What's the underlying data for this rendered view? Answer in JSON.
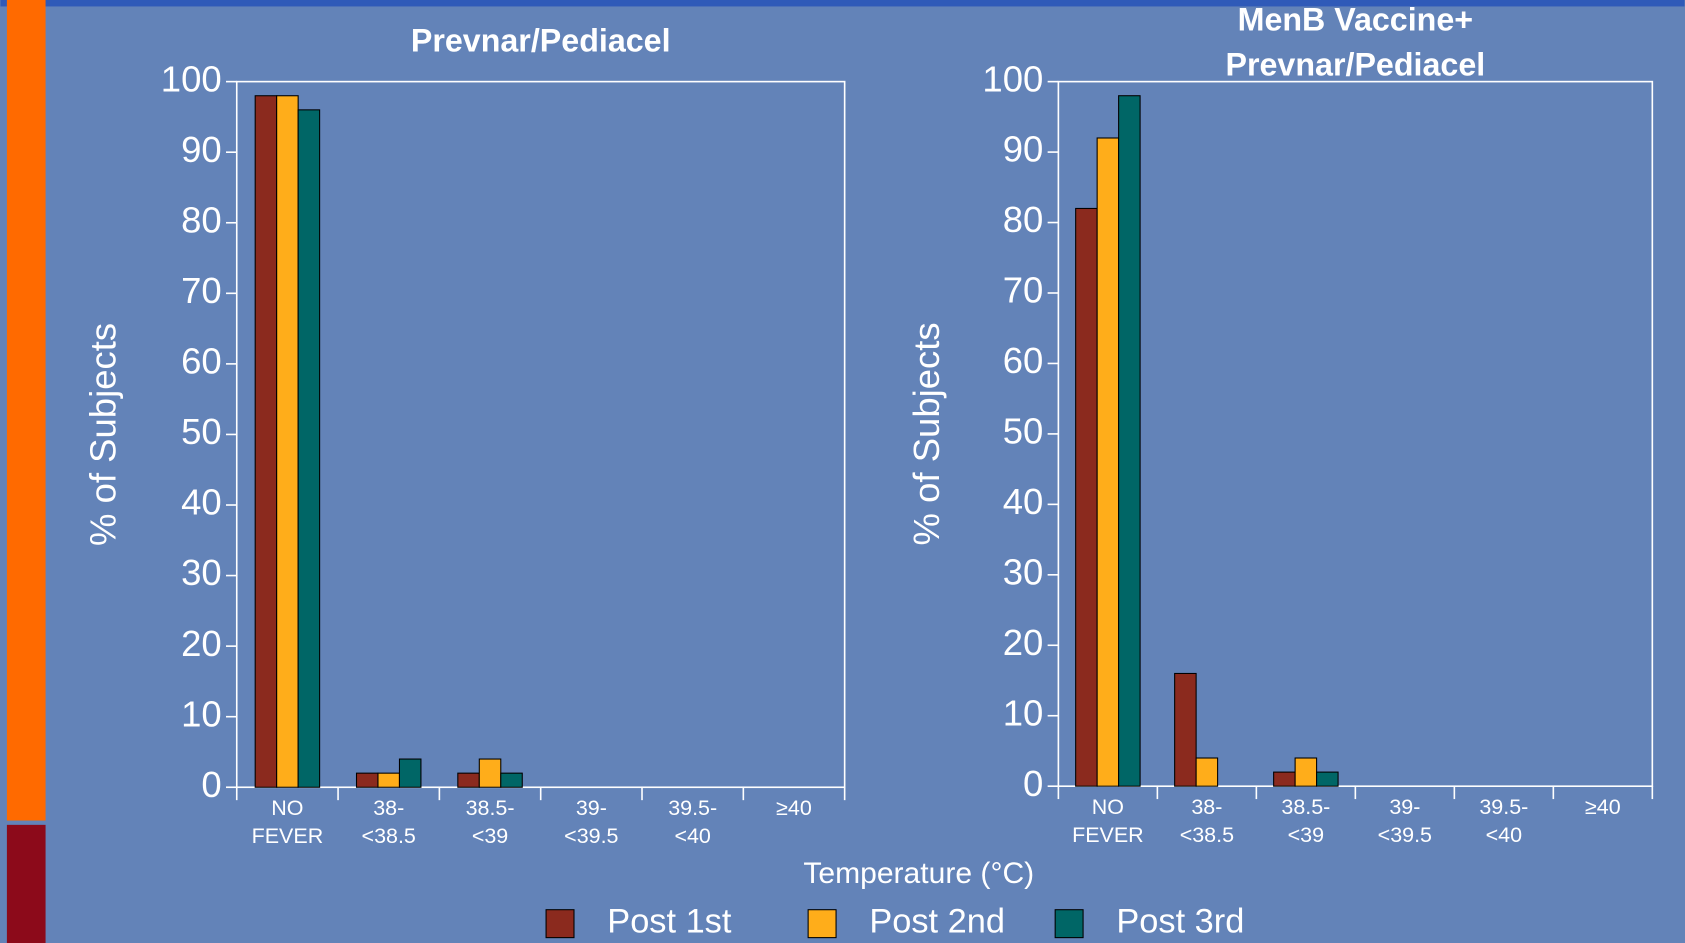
{
  "chart_data": [
    {
      "type": "bar",
      "title": "Prevnar/Pediacel",
      "ylabel": "% of Subjects",
      "categories": [
        "NO\nFEVER",
        "38-\n<38.5",
        "38.5-\n<39",
        "39-\n<39.5",
        "39.5-\n<40",
        "≥40"
      ],
      "series": [
        {
          "name": "Post 1st",
          "color": "#8b2a1e",
          "values": [
            98,
            2,
            2,
            0,
            0,
            0
          ]
        },
        {
          "name": "Post 2nd",
          "color": "#ffad1a",
          "values": [
            98,
            2,
            4,
            0,
            0,
            0
          ]
        },
        {
          "name": "Post 3rd",
          "color": "#006666",
          "values": [
            96,
            4,
            2,
            0,
            0,
            0
          ]
        }
      ],
      "ylim": [
        0,
        100
      ],
      "yticks": [
        0,
        10,
        20,
        30,
        40,
        50,
        60,
        70,
        80,
        90,
        100
      ]
    },
    {
      "type": "bar",
      "title": "MenB Vaccine+\nPrevnar/Pediacel",
      "ylabel": "% of Subjects",
      "categories": [
        "NO\nFEVER",
        "38-\n<38.5",
        "38.5-\n<39",
        "39-\n<39.5",
        "39.5-\n<40",
        "≥40"
      ],
      "series": [
        {
          "color": "#8b2a1e",
          "values": [
            82,
            16,
            2,
            0,
            0,
            0
          ]
        },
        {
          "color": "#ffad1a",
          "values": [
            92,
            4,
            4,
            0,
            0,
            0
          ]
        },
        {
          "color": "#006666",
          "values": [
            98,
            0,
            2,
            0,
            0,
            0
          ]
        }
      ],
      "ylim": [
        0,
        100
      ],
      "yticks": [
        0,
        10,
        20,
        30,
        40,
        50,
        60,
        70,
        80,
        90,
        100
      ]
    }
  ],
  "xlabel": "Temperature (°C)"
}
